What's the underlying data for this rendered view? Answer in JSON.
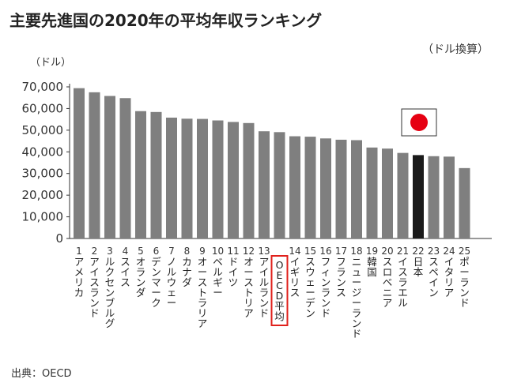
{
  "title": "主要先進国の2020年の平均年収ランキング",
  "unit_note": "（ドル換算）",
  "source": "出典：OECD",
  "chart_data": {
    "type": "bar",
    "title": "主要先進国の2020年の平均年収ランキング",
    "ylabel": "（ドル）",
    "xlabel": "",
    "ylim": [
      0,
      70000
    ],
    "yticks": [
      "0",
      "10,000",
      "20,000",
      "30,000",
      "40,000",
      "50,000",
      "60,000",
      "70,000"
    ],
    "grid": false,
    "categories": [
      {
        "rank": "1",
        "name": "アメリカ",
        "value": 69400
      },
      {
        "rank": "2",
        "name": "アイスランド",
        "value": 67500
      },
      {
        "rank": "3",
        "name": "ルクセンブルグ",
        "value": 65800
      },
      {
        "rank": "4",
        "name": "スイス",
        "value": 64800
      },
      {
        "rank": "5",
        "name": "オランダ",
        "value": 58800
      },
      {
        "rank": "6",
        "name": "デンマーク",
        "value": 58400
      },
      {
        "rank": "7",
        "name": "ノルウェー",
        "value": 55800
      },
      {
        "rank": "8",
        "name": "カナダ",
        "value": 55300
      },
      {
        "rank": "9",
        "name": "オーストラリア",
        "value": 55200
      },
      {
        "rank": "10",
        "name": "ベルギー",
        "value": 54500
      },
      {
        "rank": "11",
        "name": "ドイツ",
        "value": 53800
      },
      {
        "rank": "12",
        "name": "オーストリア",
        "value": 53300
      },
      {
        "rank": "13",
        "name": "アイルランド",
        "value": 49500
      },
      {
        "rank": "",
        "name": "OECD平均",
        "value": 49100,
        "highlight": "oecd"
      },
      {
        "rank": "14",
        "name": "イギリス",
        "value": 47200
      },
      {
        "rank": "15",
        "name": "スウェーデン",
        "value": 47000
      },
      {
        "rank": "16",
        "name": "フィンランド",
        "value": 46200
      },
      {
        "rank": "17",
        "name": "フランス",
        "value": 45600
      },
      {
        "rank": "18",
        "name": "ニュージーランド",
        "value": 45400
      },
      {
        "rank": "19",
        "name": "韓国",
        "value": 42000
      },
      {
        "rank": "20",
        "name": "スロベニア",
        "value": 41500
      },
      {
        "rank": "21",
        "name": "イスラエル",
        "value": 39500
      },
      {
        "rank": "22",
        "name": "日本",
        "value": 38500,
        "highlight": "japan"
      },
      {
        "rank": "23",
        "name": "スペイン",
        "value": 38000
      },
      {
        "rank": "24",
        "name": "イタリア",
        "value": 37800
      },
      {
        "rank": "25",
        "name": "ポーランド",
        "value": 32500
      }
    ],
    "colors": {
      "bar": "#7f7f7f",
      "bar_japan": "#1a1a1a",
      "highlight_box": "#e0201b",
      "flag_red": "#e60012"
    }
  }
}
